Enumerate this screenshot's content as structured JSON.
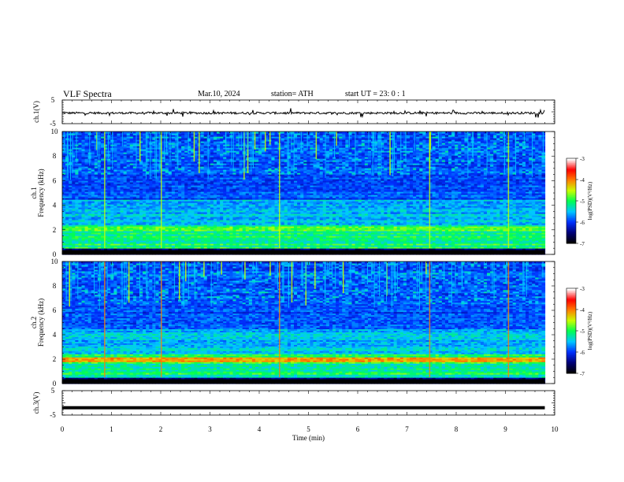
{
  "header": {
    "title": "VLF  Spectra",
    "date": "Mar.10, 2024",
    "station": "station= ATH",
    "start": "start  UT  =   23: 0   : 1"
  },
  "chart_data": [
    {
      "type": "line",
      "ylabel": "ch.1(V)",
      "yticks": [
        "5",
        "-5"
      ],
      "ylim": [
        -5,
        5
      ],
      "xlim": [
        0,
        10
      ],
      "data_xrange": [
        0,
        9.8
      ],
      "baseline": -0.5,
      "color": "#000000"
    },
    {
      "type": "heatmap",
      "ylabel": "Frequency (kHz)",
      "ylabel2": "ch.1",
      "yticks": [
        "0",
        "2",
        "4",
        "6",
        "8",
        "10"
      ],
      "ylim": [
        0,
        10
      ],
      "xlim": [
        0,
        10
      ],
      "data_xrange": [
        0,
        9.8
      ],
      "colorbar": {
        "label": "log(PSD)(V²/Hz)",
        "ticks": [
          "-3",
          "-4",
          "-5",
          "-6",
          "-7"
        ],
        "range": [
          -7,
          -3
        ],
        "colors": [
          "#000000",
          "#00007a",
          "#0030ff",
          "#00c8ff",
          "#00ff50",
          "#c8ff00",
          "#ff8000",
          "#ff0000",
          "#ffffff"
        ]
      }
    },
    {
      "type": "heatmap",
      "ylabel": "Frequency (kHz)",
      "ylabel2": "ch.2",
      "yticks": [
        "0",
        "2",
        "4",
        "6",
        "8",
        "10"
      ],
      "ylim": [
        0,
        10
      ],
      "xlim": [
        0,
        10
      ],
      "data_xrange": [
        0,
        9.8
      ],
      "colorbar": {
        "label": "log(PSD)(V²/Hz)",
        "ticks": [
          "-3",
          "-4",
          "-5",
          "-6",
          "-7"
        ],
        "range": [
          -7,
          -3
        ],
        "colors": [
          "#000000",
          "#00007a",
          "#0030ff",
          "#00c8ff",
          "#00ff50",
          "#c8ff00",
          "#ff8000",
          "#ff0000",
          "#ffffff"
        ]
      }
    },
    {
      "type": "line",
      "ylabel": "ch.3(V)",
      "yticks": [
        "5",
        "-5"
      ],
      "ylim": [
        -5,
        5
      ],
      "xlim": [
        0,
        10
      ],
      "data_xrange": [
        0,
        9.8
      ],
      "baseline": -2.0,
      "color": "#000000"
    }
  ],
  "xaxis": {
    "label": "Time  (min)",
    "ticks": [
      "0",
      "1",
      "2",
      "3",
      "4",
      "5",
      "6",
      "7",
      "8",
      "9",
      "10"
    ]
  }
}
